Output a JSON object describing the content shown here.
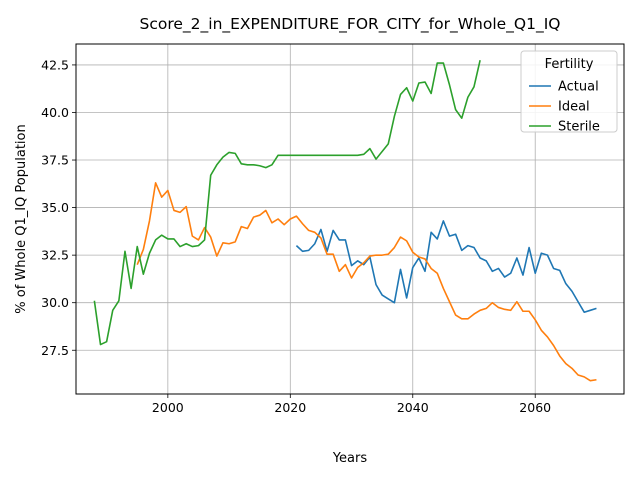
{
  "chart_data": {
    "type": "line",
    "title": "Score_2_in_EXPENDITURE_FOR_CITY_for_Whole_Q1_IQ",
    "xlabel": "Years",
    "ylabel": "% of Whole Q1_IQ Population",
    "xlim": [
      1985,
      2074.5
    ],
    "ylim": [
      25.2,
      43.6
    ],
    "xticks": [
      2000,
      2020,
      2040,
      2060
    ],
    "yticks": [
      27.5,
      30.0,
      32.5,
      35.0,
      37.5,
      40.0,
      42.5
    ],
    "xtick_labels": [
      "2000",
      "2020",
      "2040",
      "2060"
    ],
    "ytick_labels": [
      "27.5",
      "30.0",
      "32.5",
      "35.0",
      "37.5",
      "40.0",
      "42.5"
    ],
    "grid": true,
    "legend": {
      "title": "Fertility",
      "position": "top-right"
    },
    "series": [
      {
        "name": "Actual",
        "color": "#1f77b4",
        "x": [
          2021,
          2022,
          2023,
          2024,
          2025,
          2026,
          2027,
          2028,
          2029,
          2030,
          2031,
          2032,
          2033,
          2034,
          2035,
          2036,
          2037,
          2038,
          2039,
          2040,
          2041,
          2042,
          2043,
          2044,
          2045,
          2046,
          2047,
          2048,
          2049,
          2050,
          2051,
          2052,
          2053,
          2054,
          2055,
          2056,
          2057,
          2058,
          2059,
          2060,
          2061,
          2062,
          2063,
          2064,
          2065,
          2066,
          2067,
          2068,
          2069,
          2070
        ],
        "y": [
          33.0,
          32.7,
          32.75,
          33.1,
          33.85,
          32.7,
          33.8,
          33.3,
          33.3,
          31.95,
          32.2,
          32.0,
          32.4,
          30.95,
          30.4,
          30.2,
          30.0,
          31.75,
          30.25,
          31.85,
          32.35,
          31.65,
          33.7,
          33.35,
          34.3,
          33.5,
          33.6,
          32.75,
          33.0,
          32.9,
          32.35,
          32.2,
          31.65,
          31.8,
          31.35,
          31.55,
          32.35,
          31.45,
          32.9,
          31.55,
          32.6,
          32.5,
          31.8,
          31.7,
          31.0,
          30.6,
          30.05,
          29.5,
          29.6,
          29.7
        ]
      },
      {
        "name": "Ideal",
        "color": "#ff7f0e",
        "x": [
          1995,
          1996,
          1997,
          1998,
          1999,
          2000,
          2001,
          2002,
          2003,
          2004,
          2005,
          2006,
          2007,
          2008,
          2009,
          2010,
          2011,
          2012,
          2013,
          2014,
          2015,
          2016,
          2017,
          2018,
          2019,
          2020,
          2021,
          2022,
          2023,
          2024,
          2025,
          2026,
          2027,
          2028,
          2029,
          2030,
          2031,
          2032,
          2033,
          2034,
          2035,
          2036,
          2037,
          2038,
          2039,
          2040,
          2041,
          2042,
          2043,
          2044,
          2045,
          2046,
          2047,
          2048,
          2049,
          2050,
          2051,
          2052,
          2053,
          2054,
          2055,
          2056,
          2057,
          2058,
          2059,
          2060,
          2061,
          2062,
          2063,
          2064,
          2065,
          2066,
          2067,
          2068,
          2069,
          2070
        ],
        "y": [
          32.0,
          32.8,
          34.3,
          36.3,
          35.55,
          35.9,
          34.85,
          34.75,
          35.05,
          33.5,
          33.3,
          33.95,
          33.45,
          32.45,
          33.15,
          33.1,
          33.2,
          34.0,
          33.9,
          34.5,
          34.6,
          34.85,
          34.2,
          34.4,
          34.1,
          34.4,
          34.55,
          34.15,
          33.8,
          33.7,
          33.4,
          32.55,
          32.55,
          31.65,
          32.0,
          31.3,
          31.85,
          32.1,
          32.45,
          32.5,
          32.5,
          32.55,
          32.9,
          33.45,
          33.25,
          32.65,
          32.4,
          32.3,
          31.8,
          31.55,
          30.75,
          30.05,
          29.35,
          29.15,
          29.15,
          29.4,
          29.6,
          29.7,
          30.0,
          29.75,
          29.65,
          29.6,
          30.05,
          29.55,
          29.55,
          29.1,
          28.55,
          28.2,
          27.75,
          27.2,
          26.8,
          26.55,
          26.2,
          26.1,
          25.9,
          25.95
        ]
      },
      {
        "name": "Sterile",
        "color": "#2ca02c",
        "x": [
          1988,
          1989,
          1990,
          1991,
          1992,
          1993,
          1994,
          1995,
          1996,
          1997,
          1998,
          1999,
          2000,
          2001,
          2002,
          2003,
          2004,
          2005,
          2006,
          2007,
          2008,
          2009,
          2010,
          2011,
          2012,
          2013,
          2014,
          2015,
          2016,
          2017,
          2018,
          2019,
          2020,
          2021,
          2022,
          2023,
          2024,
          2025,
          2026,
          2027,
          2028,
          2029,
          2030,
          2031,
          2032,
          2033,
          2034,
          2035,
          2036,
          2037,
          2038,
          2039,
          2040,
          2041,
          2042,
          2043,
          2044,
          2045,
          2046,
          2047,
          2048,
          2049,
          2050,
          2051
        ],
        "y": [
          30.1,
          27.8,
          27.95,
          29.6,
          30.1,
          32.7,
          30.75,
          32.95,
          31.5,
          32.6,
          33.3,
          33.55,
          33.35,
          33.35,
          32.95,
          33.1,
          32.95,
          33.0,
          33.3,
          36.7,
          37.25,
          37.65,
          37.9,
          37.85,
          37.3,
          37.25,
          37.25,
          37.2,
          37.1,
          37.25,
          37.75,
          37.75,
          37.75,
          37.75,
          37.75,
          37.75,
          37.75,
          37.75,
          37.75,
          37.75,
          37.75,
          37.75,
          37.75,
          37.75,
          37.8,
          38.1,
          37.55,
          37.95,
          38.35,
          39.8,
          40.95,
          41.3,
          40.6,
          41.55,
          41.6,
          41.0,
          42.6,
          42.6,
          41.45,
          40.15,
          39.7,
          40.8,
          41.35,
          42.75
        ]
      }
    ]
  }
}
